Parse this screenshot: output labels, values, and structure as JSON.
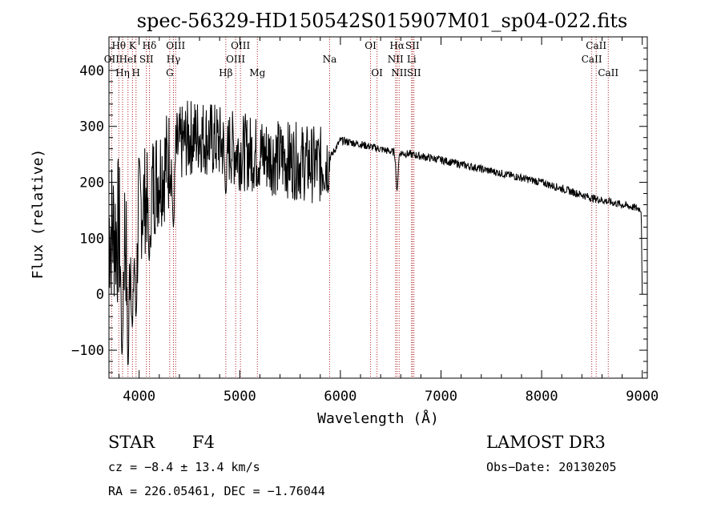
{
  "chart_data": {
    "type": "line",
    "title": "spec-56329-HD150542S015907M01_sp04-022.fits",
    "xlabel": "Wavelength (Å)",
    "ylabel": "Flux (relative)",
    "xlim": [
      3700,
      9050
    ],
    "ylim": [
      -150,
      460
    ],
    "x_ticks": [
      4000,
      5000,
      6000,
      7000,
      8000,
      9000
    ],
    "y_ticks": [
      -100,
      0,
      100,
      200,
      300,
      400
    ],
    "grid": false,
    "line_color": "#000000",
    "marker_color": "#b22222",
    "series": [
      {
        "name": "flux",
        "anchors": [
          {
            "x": 3700,
            "y": 120
          },
          {
            "x": 3800,
            "y": 110
          },
          {
            "x": 3900,
            "y": 120
          },
          {
            "x": 4000,
            "y": 150
          },
          {
            "x": 4100,
            "y": 185
          },
          {
            "x": 4200,
            "y": 215
          },
          {
            "x": 4300,
            "y": 240
          },
          {
            "x": 4400,
            "y": 265
          },
          {
            "x": 4500,
            "y": 280
          },
          {
            "x": 4600,
            "y": 285
          },
          {
            "x": 4800,
            "y": 270
          },
          {
            "x": 5000,
            "y": 255
          },
          {
            "x": 5200,
            "y": 250
          },
          {
            "x": 5500,
            "y": 240
          },
          {
            "x": 5800,
            "y": 230
          },
          {
            "x": 5900,
            "y": 245
          },
          {
            "x": 6000,
            "y": 275
          },
          {
            "x": 6200,
            "y": 268
          },
          {
            "x": 6500,
            "y": 255
          },
          {
            "x": 6700,
            "y": 250
          },
          {
            "x": 7000,
            "y": 240
          },
          {
            "x": 7500,
            "y": 220
          },
          {
            "x": 8000,
            "y": 200
          },
          {
            "x": 8500,
            "y": 172
          },
          {
            "x": 8800,
            "y": 160
          },
          {
            "x": 8990,
            "y": 152
          }
        ],
        "dips": [
          {
            "x": 3830,
            "y": -110
          },
          {
            "x": 3890,
            "y": -130
          },
          {
            "x": 3933,
            "y": -60
          },
          {
            "x": 3968,
            "y": -40
          },
          {
            "x": 4101,
            "y": 60
          },
          {
            "x": 4340,
            "y": 120
          },
          {
            "x": 4861,
            "y": 180
          },
          {
            "x": 6563,
            "y": 185
          },
          {
            "x": 9000,
            "y": 0
          }
        ]
      }
    ],
    "lines": [
      {
        "label": "Hθ",
        "x": 3798,
        "row": 1
      },
      {
        "label": "OII",
        "x": 3727,
        "row": 2
      },
      {
        "label": "Hη",
        "x": 3835,
        "row": 3
      },
      {
        "label": "K",
        "x": 3934,
        "row": 1
      },
      {
        "label": "HeI",
        "x": 3889,
        "row": 2
      },
      {
        "label": "H",
        "x": 3969,
        "row": 3
      },
      {
        "label": "Hδ",
        "x": 4102,
        "row": 1
      },
      {
        "label": "SII",
        "x": 4072,
        "row": 2
      },
      {
        "label": "OIII",
        "x": 4363,
        "row": 1
      },
      {
        "label": "Hγ",
        "x": 4341,
        "row": 2
      },
      {
        "label": "G",
        "x": 4304,
        "row": 3
      },
      {
        "label": "Hβ",
        "x": 4861,
        "row": 3
      },
      {
        "label": "OIII",
        "x": 5007,
        "row": 1
      },
      {
        "label": "OIII",
        "x": 4959,
        "row": 2
      },
      {
        "label": "Mg",
        "x": 5175,
        "row": 3
      },
      {
        "label": "Na",
        "x": 5893,
        "row": 2
      },
      {
        "label": "OI",
        "x": 6300,
        "row": 1
      },
      {
        "label": "OI",
        "x": 6364,
        "row": 3
      },
      {
        "label": "Hα",
        "x": 6563,
        "row": 1
      },
      {
        "label": "NII",
        "x": 6548,
        "row": 2
      },
      {
        "label": "NII",
        "x": 6584,
        "row": 3
      },
      {
        "label": "SII",
        "x": 6716,
        "row": 1
      },
      {
        "label": "Li",
        "x": 6708,
        "row": 2
      },
      {
        "label": "SII",
        "x": 6731,
        "row": 3
      },
      {
        "label": "CaII",
        "x": 8542,
        "row": 1
      },
      {
        "label": "CaII",
        "x": 8498,
        "row": 2
      },
      {
        "label": "CaII",
        "x": 8662,
        "row": 3
      }
    ]
  },
  "info": {
    "object_type": "STAR",
    "subclass": "F4",
    "survey": "LAMOST DR3",
    "cz": "cz = −8.4 ± 13.4 km/s",
    "obs_date": "Obs−Date: 20130205",
    "coords": "RA = 226.05461, DEC =  −1.76044"
  }
}
